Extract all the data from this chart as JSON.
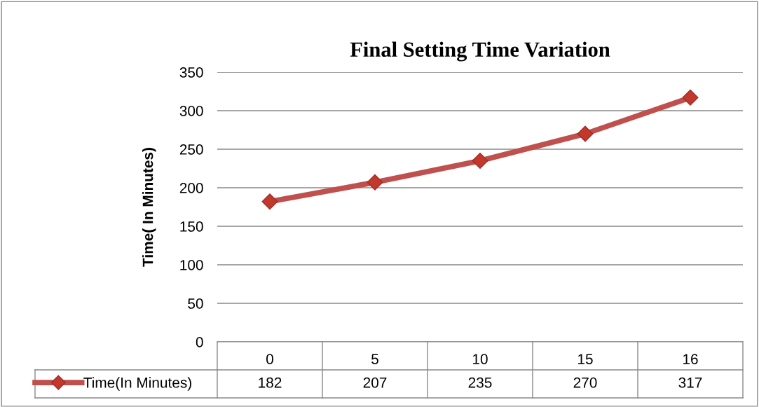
{
  "chart_data": {
    "type": "line",
    "title": "Final Setting Time Variation",
    "ylabel": "Time( In Minutes)",
    "categories": [
      "0",
      "5",
      "10",
      "15",
      "16"
    ],
    "series": [
      {
        "name": "Time(In Minutes)",
        "color": "#c0504d",
        "values": [
          182,
          207,
          235,
          270,
          317
        ]
      }
    ],
    "ylim": [
      0,
      350
    ],
    "yticks": [
      0,
      50,
      100,
      150,
      200,
      250,
      300,
      350
    ],
    "grid": "y",
    "marker": "diamond",
    "line_style": "solid",
    "data_labels": true,
    "legend": "bottom left"
  }
}
